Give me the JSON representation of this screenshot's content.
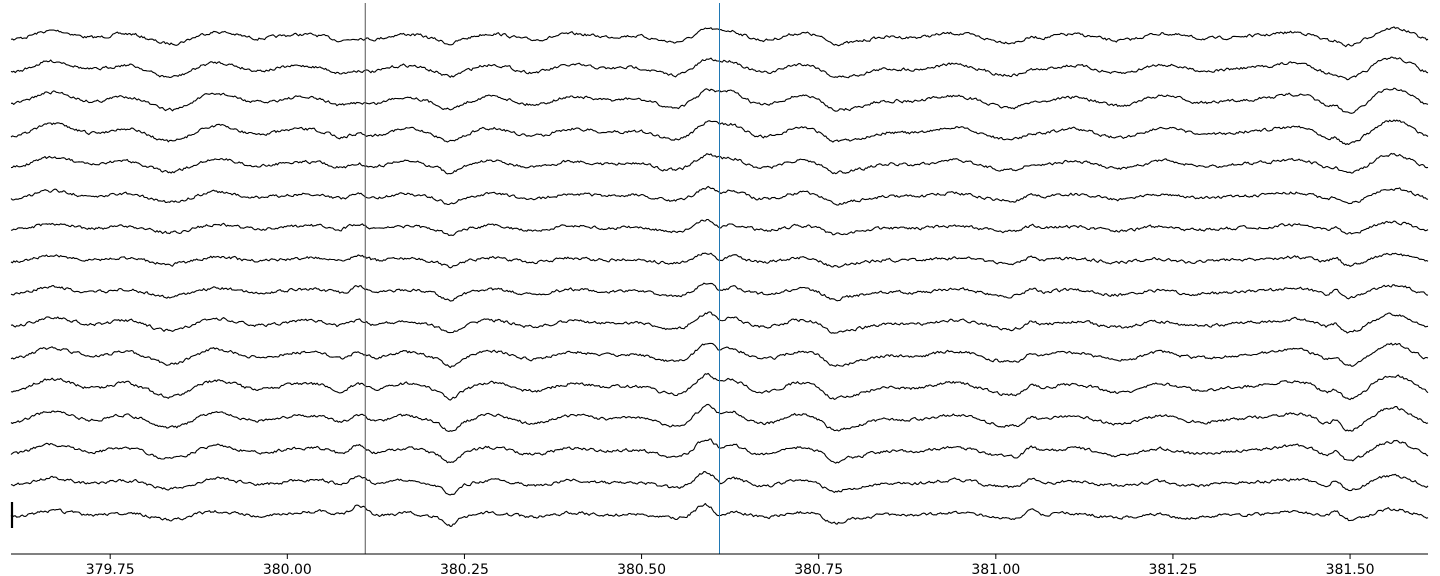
{
  "chart_data": {
    "type": "line",
    "title": "",
    "xlabel": "",
    "ylabel": "",
    "xlim": [
      379.61,
      381.61
    ],
    "x_ticks": [
      379.75,
      380.0,
      380.25,
      380.5,
      380.75,
      381.0,
      381.25,
      381.5
    ],
    "x_tick_labels": [
      "379.75",
      "380.00",
      "380.25",
      "380.50",
      "380.75",
      "381.00",
      "381.25",
      "381.50"
    ],
    "channel_count": 16,
    "sample_interval_s": 0.002,
    "grid": false,
    "markers": [
      {
        "name": "marker-1",
        "x": 380.11,
        "color": "#555555"
      },
      {
        "name": "marker-2",
        "x": 380.61,
        "color": "#1f77b4"
      }
    ],
    "events": [
      {
        "t": 380.05,
        "amp": -4,
        "width": 0.025
      },
      {
        "t": 380.1,
        "amp": -13,
        "width": 0.018
      },
      {
        "t": 380.23,
        "amp": 8,
        "width": 0.012
      },
      {
        "t": 380.59,
        "amp": -8,
        "width": 0.02
      },
      {
        "t": 380.61,
        "amp": 9,
        "width": 0.012
      },
      {
        "t": 380.77,
        "amp": 6,
        "width": 0.015
      },
      {
        "t": 381.05,
        "amp": -8,
        "width": 0.012
      },
      {
        "t": 381.26,
        "amp": 5,
        "width": 0.03
      },
      {
        "t": 381.48,
        "amp": -10,
        "width": 0.01
      }
    ],
    "trace_color": "#000000",
    "axis_color": "#000000"
  }
}
